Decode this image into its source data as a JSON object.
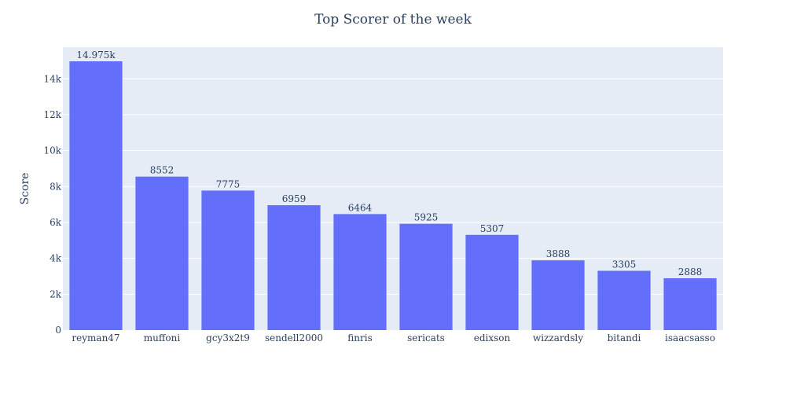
{
  "chart_data": {
    "type": "bar",
    "title": "Top Scorer of the week",
    "xlabel": "",
    "ylabel": "Score",
    "categories": [
      "reyman47",
      "muffoni",
      "gcy3x2t9",
      "sendell2000",
      "finris",
      "sericats",
      "edixson",
      "wizzardsly",
      "bitandi",
      "isaacsasso"
    ],
    "values": [
      14975,
      8552,
      7775,
      6959,
      6464,
      5925,
      5307,
      3888,
      3305,
      2888
    ],
    "value_labels": [
      "14.975k",
      "8552",
      "7775",
      "6959",
      "6464",
      "5925",
      "5307",
      "3888",
      "3305",
      "2888"
    ],
    "yticks": [
      0,
      2000,
      4000,
      6000,
      8000,
      10000,
      12000,
      14000
    ],
    "ytick_labels": [
      "0",
      "2k",
      "4k",
      "6k",
      "8k",
      "10k",
      "12k",
      "14k"
    ],
    "ylim": [
      0,
      15763
    ],
    "grid": true,
    "legend": "none",
    "colors": {
      "bar": "#636efa",
      "plot_background": "#e5ecf6",
      "gridline": "#ffffff",
      "text": "#2a3f5f"
    }
  }
}
